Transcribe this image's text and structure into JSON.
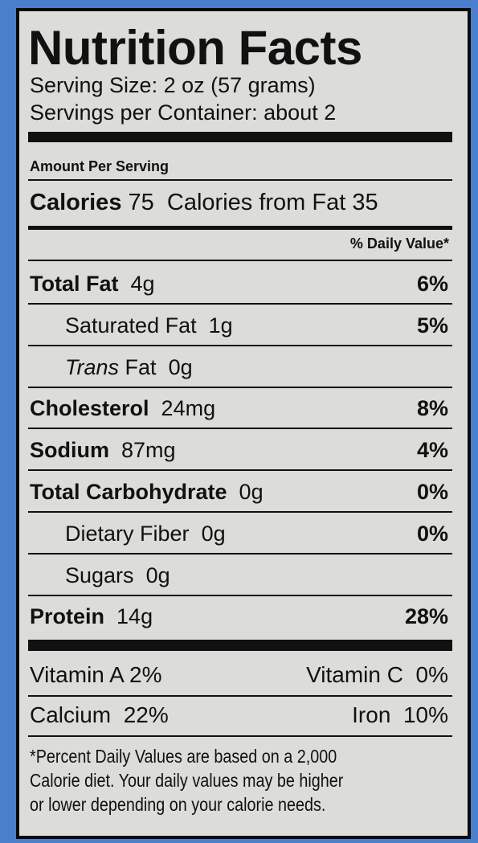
{
  "title": "Nutrition Facts",
  "serving_size": "Serving Size: 2 oz (57 grams)",
  "servings_per_container": "Servings per Container: about 2",
  "amount_per_serving": "Amount Per Serving",
  "calories": {
    "label": "Calories",
    "value": "75",
    "from_fat": "Calories from Fat 35"
  },
  "daily_value_header": "% Daily Value*",
  "nutrients": [
    {
      "name": "Total Fat",
      "amount": "4g",
      "dv": "6%"
    },
    {
      "name": "Saturated Fat",
      "amount": "1g",
      "dv": "5%"
    },
    {
      "prefix": "Trans",
      "name": "Fat",
      "amount": "0g"
    },
    {
      "name": "Cholesterol",
      "amount": "24mg",
      "dv": "8%"
    },
    {
      "name": "Sodium",
      "amount": "87mg",
      "dv": "4%"
    },
    {
      "name": "Total Carbohydrate",
      "amount": "0g",
      "dv": "0%"
    },
    {
      "name": "Dietary Fiber",
      "amount": "0g",
      "dv": "0%"
    },
    {
      "name": "Sugars",
      "amount": "0g"
    },
    {
      "name": "Protein",
      "amount": "14g",
      "dv": "28%"
    }
  ],
  "vitamins": [
    {
      "name": "Vitamin A",
      "value": "2%"
    },
    {
      "name": "Vitamin C",
      "value": "0%"
    },
    {
      "name": "Calcium",
      "value": "22%"
    },
    {
      "name": "Iron",
      "value": "10%"
    }
  ],
  "footnote": [
    "*Percent Daily Values are based on a 2,000",
    "Calorie diet. Your daily values may be higher",
    "or lower depending on your calorie needs."
  ]
}
